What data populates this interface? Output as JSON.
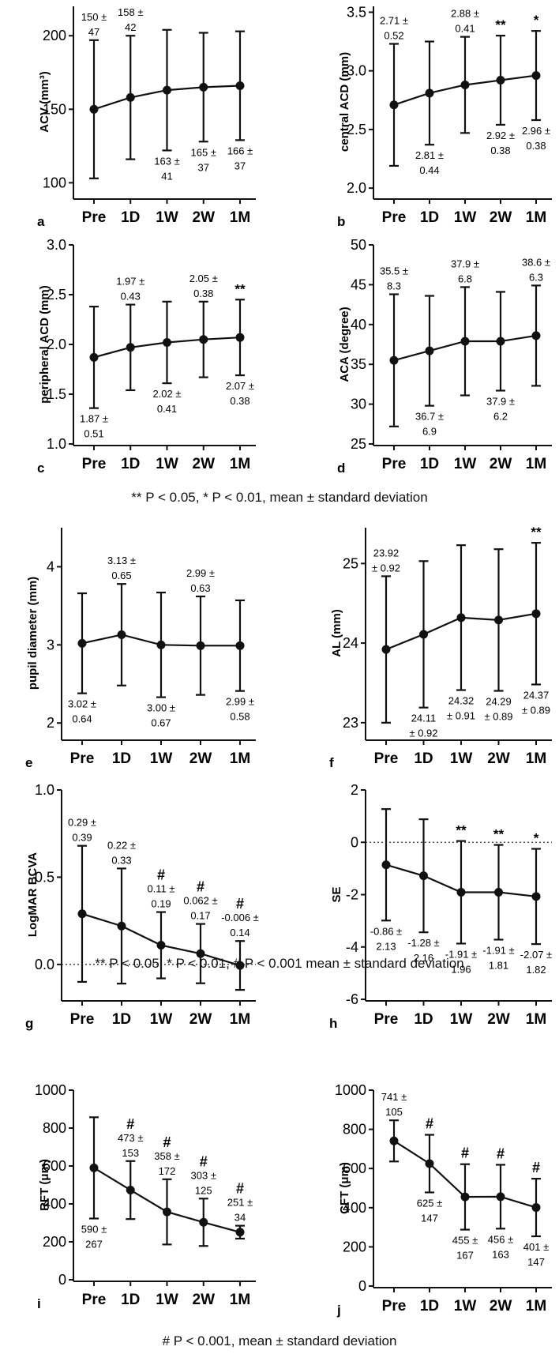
{
  "categories": [
    "Pre",
    "1D",
    "1W",
    "2W",
    "1M"
  ],
  "captions": {
    "row1": {
      "p05": "** P < 0.05,",
      "p01": "* P < 0.01,",
      "rest": " mean ± standard deviation"
    },
    "row2": {
      "p05": "** P < 0.05,",
      "p01": "* P < 0.01,",
      "p001": "# P < 0.001",
      "rest": "  mean ± standard deviation"
    },
    "row3": {
      "p001": "# P < 0.001,",
      "rest": " mean ± standard deviation"
    }
  },
  "chart_data": [
    {
      "id": "a",
      "type": "line",
      "panel_letter": "a",
      "ylabel": "ACV (mm³)",
      "ylim": [
        90,
        220
      ],
      "yticks": [
        100,
        150,
        200
      ],
      "values": [
        150,
        158,
        163,
        165,
        166
      ],
      "sd": [
        47,
        42,
        41,
        37,
        37
      ],
      "labels": [
        [
          "150 ±",
          "47"
        ],
        [
          "158 ±",
          "42"
        ],
        [
          "163 ±",
          "41"
        ],
        [
          "165 ±",
          "37"
        ],
        [
          "166 ±",
          "37"
        ]
      ],
      "label_pos": [
        "above",
        "above",
        "below",
        "below",
        "below"
      ],
      "marks": [
        "",
        "",
        "",
        "",
        ""
      ]
    },
    {
      "id": "b",
      "type": "line",
      "panel_letter": "b",
      "ylabel": "central ACD (mm)",
      "ylim": [
        1.92,
        3.55
      ],
      "yticks": [
        2.0,
        2.5,
        3.0,
        3.5
      ],
      "values": [
        2.71,
        2.81,
        2.88,
        2.92,
        2.96
      ],
      "sd": [
        0.52,
        0.44,
        0.41,
        0.38,
        0.38
      ],
      "labels": [
        [
          "2.71 ±",
          "0.52"
        ],
        [
          "2.81 ±",
          "0.44"
        ],
        [
          "2.88 ±",
          "0.41"
        ],
        [
          "2.92 ±",
          "0.38"
        ],
        [
          "2.96 ±",
          "0.38"
        ]
      ],
      "label_pos": [
        "above",
        "below",
        "above",
        "below",
        "below"
      ],
      "marks": [
        "",
        "",
        "",
        "**",
        "*"
      ]
    },
    {
      "id": "c",
      "type": "line",
      "panel_letter": "c",
      "ylabel": "peripheral ACD (mm)",
      "ylim": [
        1.0,
        3.0
      ],
      "yticks": [
        1.0,
        1.5,
        2.0,
        2.5,
        3.0
      ],
      "values": [
        1.87,
        1.97,
        2.02,
        2.05,
        2.07
      ],
      "sd": [
        0.51,
        0.43,
        0.41,
        0.38,
        0.38
      ],
      "labels": [
        [
          "1.87 ±",
          "0.51"
        ],
        [
          "1.97 ±",
          "0.43"
        ],
        [
          "2.02 ±",
          "0.41"
        ],
        [
          "2.05 ±",
          "0.38"
        ],
        [
          "2.07 ±",
          "0.38"
        ]
      ],
      "label_pos": [
        "below",
        "above",
        "below",
        "above",
        "below"
      ],
      "marks": [
        "",
        "",
        "",
        "",
        "**"
      ]
    },
    {
      "id": "d",
      "type": "line",
      "panel_letter": "d",
      "ylabel": "ACA (degree)",
      "ylim": [
        25,
        50
      ],
      "yticks": [
        25,
        30,
        35,
        40,
        45,
        50
      ],
      "values": [
        35.5,
        36.7,
        37.9,
        37.9,
        38.6
      ],
      "sd": [
        8.3,
        6.9,
        6.8,
        6.2,
        6.3
      ],
      "labels": [
        [
          "35.5 ±",
          "8.3"
        ],
        [
          "36.7 ±",
          "6.9"
        ],
        [
          "37.9 ±",
          "6.8"
        ],
        [
          "37.9 ±",
          "6.2"
        ],
        [
          "38.6 ±",
          "6.3"
        ]
      ],
      "label_pos": [
        "above",
        "below",
        "above",
        "below",
        "above"
      ],
      "marks": [
        "",
        "",
        "",
        "",
        ""
      ]
    },
    {
      "id": "e",
      "type": "line",
      "panel_letter": "e",
      "ylabel": "pupil diameter (mm)",
      "ylim": [
        1.8,
        4.5
      ],
      "yticks": [
        2,
        3,
        4
      ],
      "values": [
        3.02,
        3.13,
        3.0,
        2.99,
        2.99
      ],
      "sd": [
        0.64,
        0.65,
        0.67,
        0.63,
        0.58
      ],
      "labels": [
        [
          "3.02 ±",
          "0.64"
        ],
        [
          "3.13 ±",
          "0.65"
        ],
        [
          "3.00 ±",
          "0.67"
        ],
        [
          "2.99 ±",
          "0.63"
        ],
        [
          "2.99 ±",
          "0.58"
        ]
      ],
      "label_pos": [
        "below",
        "above",
        "below",
        "above",
        "below"
      ],
      "marks": [
        "",
        "",
        "",
        "",
        ""
      ]
    },
    {
      "id": "f",
      "type": "line",
      "panel_letter": "f",
      "ylabel": "AL (mm)",
      "ylim": [
        22.8,
        25.45
      ],
      "yticks": [
        23,
        24,
        25
      ],
      "values": [
        23.92,
        24.11,
        24.32,
        24.29,
        24.37
      ],
      "sd": [
        0.92,
        0.92,
        0.91,
        0.89,
        0.89
      ],
      "labels": [
        [
          "23.92",
          "± 0.92"
        ],
        [
          "24.11",
          "± 0.92"
        ],
        [
          "24.32",
          "± 0.91"
        ],
        [
          "24.29",
          "± 0.89"
        ],
        [
          "24.37",
          "± 0.89"
        ]
      ],
      "label_pos": [
        "above",
        "below",
        "below",
        "below",
        "below"
      ],
      "marks": [
        "",
        "",
        "",
        "",
        "**"
      ]
    },
    {
      "id": "g",
      "type": "line",
      "panel_letter": "g",
      "ylabel": "LogMAR BCVA",
      "ylim": [
        -0.2,
        1.0
      ],
      "yticks": [
        0.0,
        0.5,
        1.0
      ],
      "ref_line": 0,
      "values": [
        0.29,
        0.22,
        0.11,
        0.062,
        -0.006
      ],
      "sd": [
        0.39,
        0.33,
        0.19,
        0.17,
        0.14
      ],
      "labels": [
        [
          "0.29 ±",
          "0.39"
        ],
        [
          "0.22 ±",
          "0.33"
        ],
        [
          "0.11 ±",
          "0.19"
        ],
        [
          "0.062 ±",
          "0.17"
        ],
        [
          "-0.006 ±",
          "0.14"
        ]
      ],
      "label_pos": [
        "above",
        "above",
        "above",
        "above",
        "above"
      ],
      "marks": [
        "",
        "",
        "#",
        "#",
        "#"
      ]
    },
    {
      "id": "h",
      "type": "line",
      "panel_letter": "h",
      "ylabel": "SE",
      "ylim": [
        -6,
        2
      ],
      "yticks": [
        -6,
        -4,
        -2,
        0,
        2
      ],
      "ref_line": 0,
      "values": [
        -0.86,
        -1.28,
        -1.91,
        -1.91,
        -2.07
      ],
      "sd": [
        2.13,
        2.16,
        1.96,
        1.81,
        1.82
      ],
      "labels": [
        [
          "-0.86 ±",
          "2.13"
        ],
        [
          "-1.28 ±",
          "2.16"
        ],
        [
          "-1.91 ±",
          "1.96"
        ],
        [
          "-1.91 ±",
          "1.81"
        ],
        [
          "-2.07 ±",
          "1.82"
        ]
      ],
      "label_pos": [
        "below",
        "below",
        "below",
        "below",
        "below"
      ],
      "marks": [
        "",
        "",
        "**",
        "**",
        "*"
      ]
    },
    {
      "id": "i",
      "type": "line",
      "panel_letter": "i",
      "ylabel": "RFT (μm)",
      "ylim": [
        0,
        1000
      ],
      "yticks": [
        0,
        200,
        400,
        600,
        800,
        1000
      ],
      "values": [
        590,
        473,
        358,
        303,
        251
      ],
      "sd": [
        267,
        153,
        172,
        125,
        34
      ],
      "labels": [
        [
          "590 ±",
          "267"
        ],
        [
          "473 ±",
          "153"
        ],
        [
          "358 ±",
          "172"
        ],
        [
          "303 ±",
          "125"
        ],
        [
          "251 ±",
          "34"
        ]
      ],
      "label_pos": [
        "below",
        "above",
        "above",
        "above",
        "above"
      ],
      "marks": [
        "",
        "#",
        "#",
        "#",
        "#"
      ]
    },
    {
      "id": "j",
      "type": "line",
      "panel_letter": "j",
      "ylabel": "CFT (μm)",
      "ylim": [
        0,
        1000
      ],
      "yticks": [
        0,
        200,
        400,
        600,
        800,
        1000
      ],
      "values": [
        741,
        625,
        455,
        456,
        401
      ],
      "sd": [
        105,
        147,
        167,
        163,
        147
      ],
      "labels": [
        [
          "741 ±",
          "105"
        ],
        [
          "625 ±",
          "147"
        ],
        [
          "455 ±",
          "167"
        ],
        [
          "456 ±",
          "163"
        ],
        [
          "401 ±",
          "147"
        ]
      ],
      "label_pos": [
        "above",
        "below",
        "below",
        "below",
        "below"
      ],
      "marks": [
        "",
        "#",
        "#",
        "#",
        "#"
      ]
    }
  ]
}
